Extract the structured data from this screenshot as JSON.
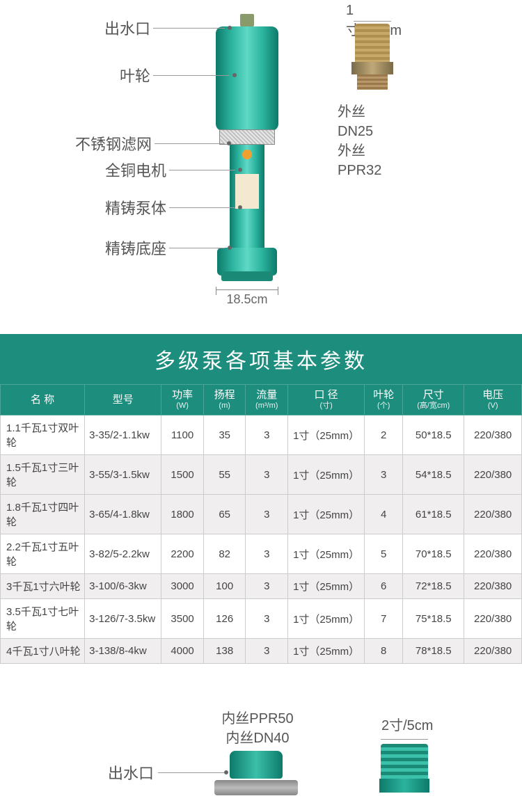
{
  "diagram1": {
    "callouts": {
      "outlet": "出水口",
      "impeller": "叶轮",
      "filter": "不锈钢滤网",
      "motor": "全铜电机",
      "pump_body": "精铸泵体",
      "base": "精铸底座"
    },
    "width_label": "18.5cm",
    "connector": {
      "top_label": "1寸/2.5cm",
      "line1": "外丝DN25",
      "line2": "外丝PPR32"
    }
  },
  "table": {
    "title": "多级泵各项基本参数",
    "headers": {
      "name": "名 称",
      "model": "型号",
      "power": "功率",
      "power_sub": "(W)",
      "head": "扬程",
      "head_sub": "(m)",
      "flow": "流量",
      "flow_sub": "(m³/m)",
      "caliber": "口 径",
      "caliber_sub": "(寸)",
      "impeller": "叶轮",
      "impeller_sub": "(个)",
      "size": "尺寸",
      "size_sub": "(高/宽cm)",
      "voltage": "电压",
      "voltage_sub": "(V)"
    },
    "col_widths": [
      "110",
      "100",
      "55",
      "55",
      "55",
      "100",
      "50",
      "80",
      "75"
    ],
    "rows": [
      [
        "1.1千瓦1寸双叶轮",
        "3-35/2-1.1kw",
        "1100",
        "35",
        "3",
        "1寸（25mm）",
        "2",
        "50*18.5",
        "220/380"
      ],
      [
        "1.5千瓦1寸三叶轮",
        "3-55/3-1.5kw",
        "1500",
        "55",
        "3",
        "1寸（25mm）",
        "3",
        "54*18.5",
        "220/380"
      ],
      [
        "1.8千瓦1寸四叶轮",
        "3-65/4-1.8kw",
        "1800",
        "65",
        "3",
        "1寸（25mm）",
        "4",
        "61*18.5",
        "220/380"
      ],
      [
        "2.2千瓦1寸五叶轮",
        "3-82/5-2.2kw",
        "2200",
        "82",
        "3",
        "1寸（25mm）",
        "5",
        "70*18.5",
        "220/380"
      ],
      [
        "3千瓦1寸六叶轮",
        "3-100/6-3kw",
        "3000",
        "100",
        "3",
        "1寸（25mm）",
        "6",
        "72*18.5",
        "220/380"
      ],
      [
        "3.5千瓦1寸七叶轮",
        "3-126/7-3.5kw",
        "3500",
        "126",
        "3",
        "1寸（25mm）",
        "7",
        "75*18.5",
        "220/380"
      ],
      [
        "4千瓦1寸八叶轮",
        "3-138/8-4kw",
        "4000",
        "138",
        "3",
        "1寸（25mm）",
        "8",
        "78*18.5",
        "220/380"
      ]
    ]
  },
  "diagram2": {
    "center_line1": "内丝PPR50",
    "center_line2": "内丝DN40",
    "outlet": "出水口",
    "conn_label": "2寸/5cm"
  },
  "colors": {
    "teal": "#1d8d7d",
    "teal_light": "#3bc0aa",
    "header_border": "#4ba596",
    "row_alt": "#f0eeee",
    "text": "#555555",
    "brass": "#b8986a"
  }
}
